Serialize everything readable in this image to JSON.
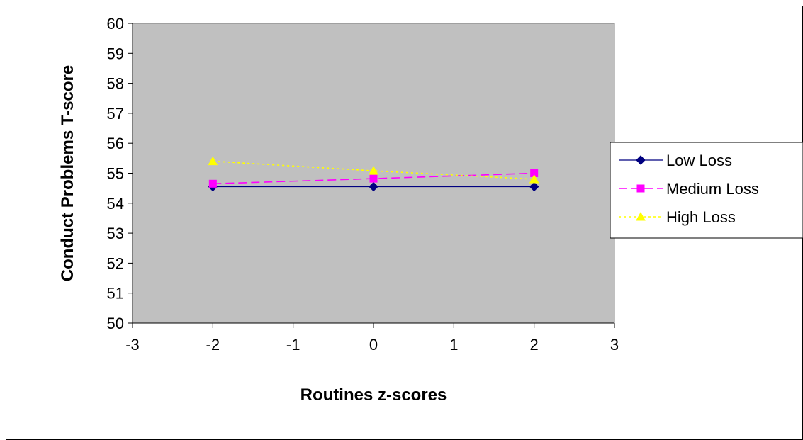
{
  "chart_data": {
    "type": "line",
    "title": "",
    "xlabel": "Routines z-scores",
    "ylabel": "Conduct Problems T-score",
    "xlim": [
      -3,
      3
    ],
    "ylim": [
      50,
      60
    ],
    "xticks": [
      "-3",
      "-2",
      "-1",
      "0",
      "1",
      "2",
      "3"
    ],
    "yticks": [
      "50",
      "51",
      "52",
      "53",
      "54",
      "55",
      "56",
      "57",
      "58",
      "59",
      "60"
    ],
    "x": [
      -2,
      0,
      2
    ],
    "series": [
      {
        "name": "Low Loss",
        "values": [
          54.55,
          54.55,
          54.55
        ],
        "color": "#000080",
        "dash": "solid",
        "marker": "diamond"
      },
      {
        "name": "Medium Loss",
        "values": [
          54.65,
          54.82,
          55.0
        ],
        "color": "#ff00ff",
        "dash": "dashed",
        "marker": "square"
      },
      {
        "name": "High Loss",
        "values": [
          55.4,
          55.08,
          54.8
        ],
        "color": "#ffff00",
        "dash": "dotted",
        "marker": "triangle"
      }
    ],
    "plot_background": "#c0c0c0",
    "grid": false,
    "legend_position": "right"
  }
}
